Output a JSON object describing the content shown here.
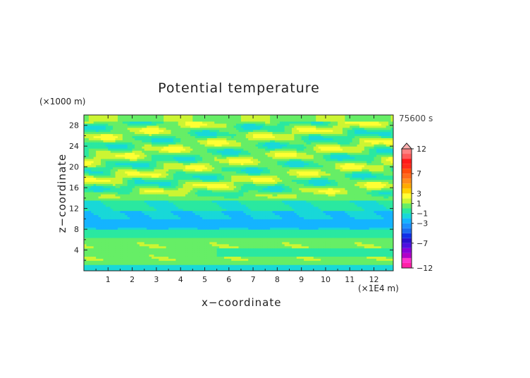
{
  "chart_data": {
    "type": "heatmap",
    "title": "Potential temperature",
    "xlabel": "x−coordinate",
    "ylabel": "z−coordinate",
    "x_unit": "(×1E4 m)",
    "z_unit": "(×1000 m)",
    "time_label": "75600 s",
    "xlim": [
      0,
      12.8
    ],
    "ylim": [
      0,
      30
    ],
    "x_ticks": [
      1,
      2,
      3,
      4,
      5,
      6,
      7,
      8,
      9,
      10,
      11,
      12
    ],
    "y_ticks": [
      4,
      8,
      12,
      16,
      20,
      24,
      28
    ],
    "colorbar": {
      "levels": [
        -12,
        -11,
        -10,
        -9,
        -8,
        -7,
        -6,
        -5,
        -4,
        -3,
        -2,
        -1,
        0,
        1,
        2,
        3,
        4,
        5,
        6,
        7,
        8,
        9,
        10,
        11,
        12
      ],
      "tick_labels": [
        "12",
        "7",
        "3",
        "1",
        "−1",
        "−3",
        "−7",
        "−12"
      ],
      "tick_values": [
        12,
        7,
        3,
        1,
        -1,
        -3,
        -7,
        -12
      ],
      "colors": [
        "#ff1fa6",
        "#ff33cc",
        "#b000c8",
        "#8a00d8",
        "#4e10e0",
        "#2a10d0",
        "#1030e8",
        "#1a6cf0",
        "#1a90ff",
        "#14b4ff",
        "#18d8d8",
        "#2ae8a0",
        "#66ee66",
        "#ccf533",
        "#ffff33",
        "#ffd200",
        "#ffaa00",
        "#ff8c1a",
        "#ff6a1a",
        "#ff4d0d",
        "#ff2a1a",
        "#ff1a1a",
        "#ff5a5a",
        "#ff8080",
        "#ffb0b0"
      ]
    }
  }
}
